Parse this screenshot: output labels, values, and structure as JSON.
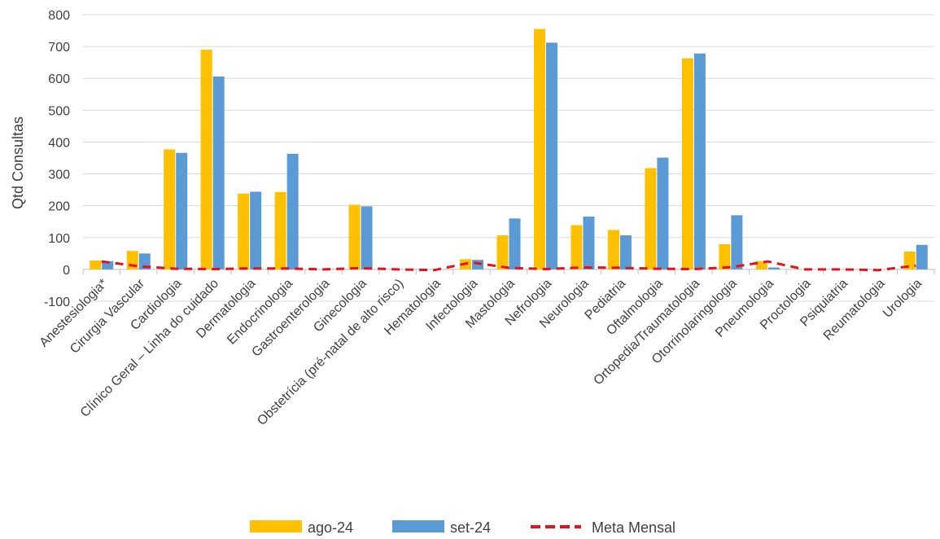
{
  "chart_data": {
    "type": "bar",
    "ylabel": "Qtd Consultas",
    "xlabel": "",
    "ylim": [
      -100,
      800
    ],
    "yticks": [
      -100,
      0,
      100,
      200,
      300,
      400,
      500,
      600,
      700,
      800
    ],
    "grid": true,
    "legend_position": "bottom",
    "categories": [
      "Anestesiologia*",
      "Cirurgia Vascular",
      "Cardiologia",
      "Clínico Geral – Linha do cuidado",
      "Dermatologia",
      "Endocrinologia",
      "Gastroenterologia",
      "Ginecologia",
      "Obstetrícia (pré-natal de alto risco)",
      "Hematologia",
      "Infectologia",
      "Mastologia",
      "Nefrologia",
      "Neurologia",
      "Pediatria",
      "Oftalmologia",
      "Ortopedia/Traumatologia",
      "Otorrinolaringologia",
      "Pneumologia",
      "Proctologia",
      "Psiquiatria",
      "Reumatologia",
      "Urologia"
    ],
    "series": [
      {
        "name": "ago-24",
        "type": "bar",
        "color": "#FFC000",
        "values": [
          28,
          58,
          377,
          690,
          238,
          243,
          0,
          203,
          0,
          0,
          32,
          107,
          755,
          139,
          124,
          318,
          663,
          79,
          26,
          0,
          0,
          0,
          56
        ]
      },
      {
        "name": "set-24",
        "type": "bar",
        "color": "#5B9BD5",
        "values": [
          26,
          50,
          366,
          606,
          244,
          363,
          0,
          198,
          0,
          0,
          30,
          160,
          712,
          166,
          107,
          351,
          678,
          170,
          6,
          0,
          0,
          0,
          77
        ]
      },
      {
        "name": "Meta Mensal",
        "type": "line",
        "style": "dashed",
        "color": "#E8101A",
        "values": [
          25,
          10,
          2,
          1,
          3,
          3,
          0,
          4,
          0,
          -2,
          22,
          5,
          1,
          6,
          5,
          2,
          1,
          7,
          25,
          0,
          0,
          -2,
          12
        ]
      }
    ]
  }
}
